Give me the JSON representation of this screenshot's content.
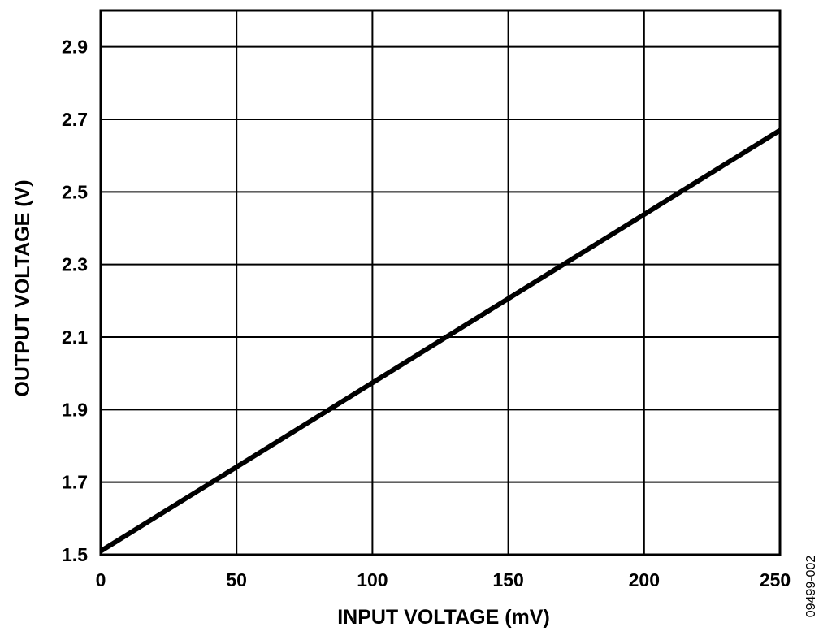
{
  "chart_data": {
    "type": "line",
    "title": "",
    "xlabel": "INPUT VOLTAGE (mV)",
    "ylabel": "OUTPUT VOLTAGE (V)",
    "xlim": [
      0,
      250
    ],
    "ylim": [
      1.5,
      3.0
    ],
    "x_ticks": [
      "0",
      "50",
      "100",
      "150",
      "200",
      "250"
    ],
    "y_ticks": [
      "1.5",
      "1.7",
      "1.9",
      "2.1",
      "2.3",
      "2.5",
      "2.7",
      "2.9"
    ],
    "grid": true,
    "line_color": "#000000",
    "series": [
      {
        "x": [
          0,
          50,
          100,
          150,
          200,
          250
        ],
        "y": [
          1.51,
          1.742,
          1.974,
          2.206,
          2.438,
          2.67
        ]
      }
    ]
  },
  "figure_id": "09499-002"
}
